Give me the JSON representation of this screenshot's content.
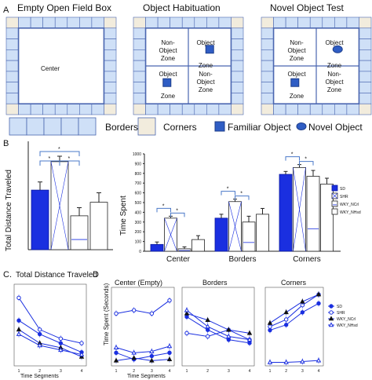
{
  "panelA": {
    "letter": "A",
    "boxes": [
      {
        "title": "Empty Open Field Box",
        "center_label": "Center"
      },
      {
        "title": "Object Habituation",
        "zones": [
          "Non-\nObject\nZone",
          "Object\nZone",
          "Object\nZone",
          "Non-\nObject\nZone"
        ]
      },
      {
        "title": "Novel Object Test",
        "zones": [
          "Non-\nObject\nZone",
          "Object\nZone",
          "Object\nZone",
          "Non-\nObject\nZone"
        ]
      }
    ],
    "legend": {
      "borders": "Borders",
      "corners": "Corners",
      "familiar": "Familiar Object",
      "novel": "Novel Object"
    },
    "colors": {
      "border_tile": "#cfe0f7",
      "corner_tile": "#f2ecdd",
      "tile_stroke": "#4a66b0",
      "object": "#2f5dc4"
    }
  },
  "chart_data": [
    {
      "panel": "B",
      "type": "bar",
      "ylabel": "Total Distance Traveled",
      "series": [
        {
          "name": "SD",
          "values": [
            22
          ],
          "err": [
            3
          ]
        },
        {
          "name": "SHR",
          "values": [
            32.5
          ],
          "err": [
            2
          ]
        },
        {
          "name": "WKY_NCrl",
          "values": [
            12.5
          ],
          "err": [
            3
          ]
        },
        {
          "name": "WKY_NHsd",
          "values": [
            17.5
          ],
          "err": [
            3.5
          ]
        }
      ],
      "significance": [
        "*",
        "*",
        "*"
      ]
    },
    {
      "panel": "B",
      "type": "bar",
      "ylabel": "Time Spent",
      "yticks": [
        "0",
        "100",
        "200",
        "300",
        "400",
        "500",
        "600",
        "700",
        "800",
        "900",
        "1000"
      ],
      "ylim": [
        0,
        1000
      ],
      "categories": [
        "Center",
        "Borders",
        "Corners"
      ],
      "series": [
        {
          "name": "SD",
          "values": [
            70,
            340,
            790
          ],
          "err": [
            25,
            40,
            30
          ]
        },
        {
          "name": "SHR",
          "values": [
            340,
            510,
            860
          ],
          "err": [
            20,
            25,
            30
          ]
        },
        {
          "name": "WKY_NCrl",
          "values": [
            25,
            300,
            770
          ],
          "err": [
            20,
            60,
            60
          ]
        },
        {
          "name": "WKY_NHsd",
          "values": [
            120,
            380,
            690
          ],
          "err": [
            40,
            60,
            60
          ]
        }
      ],
      "significance": [
        "*",
        "*",
        "*",
        "*",
        "*",
        "*"
      ]
    },
    {
      "panel": "C",
      "type": "line",
      "title": "Total Distance Traveled",
      "xlabel": "Time Segments",
      "x": [
        1,
        2,
        3,
        4
      ],
      "series": [
        {
          "name": "SD",
          "values": [
            10,
            7,
            5,
            3
          ]
        },
        {
          "name": "SHR",
          "values": [
            15,
            8,
            6,
            5
          ]
        },
        {
          "name": "WKY_NCrl",
          "values": [
            8,
            5,
            4,
            2
          ]
        },
        {
          "name": "WKY_NHsd",
          "values": [
            7,
            4.5,
            3.5,
            2.5
          ]
        }
      ]
    },
    {
      "panel": "D",
      "type": "line",
      "subplots": [
        {
          "title": "Center (Empty)",
          "x": [
            1,
            2,
            3,
            4
          ],
          "series": [
            {
              "name": "SD",
              "values": [
                20,
                10,
                15,
                20
              ]
            },
            {
              "name": "SHR",
              "values": [
                80,
                85,
                80,
                100
              ]
            },
            {
              "name": "WKY_NCrl",
              "values": [
                8,
                12,
                8,
                10
              ]
            },
            {
              "name": "WKY_NHsd",
              "values": [
                28,
                20,
                22,
                30
              ]
            }
          ]
        },
        {
          "title": "Borders",
          "x": [
            1,
            2,
            3,
            4
          ],
          "series": [
            {
              "name": "SD",
              "values": [
                75,
                55,
                40,
                35
              ]
            },
            {
              "name": "SHR",
              "values": [
                50,
                45,
                55,
                40
              ]
            },
            {
              "name": "WKY_NCrl",
              "values": [
                80,
                70,
                55,
                50
              ]
            },
            {
              "name": "WKY_NHsd",
              "values": [
                85,
                60,
                45,
                40
              ]
            }
          ]
        },
        {
          "title": "Corners",
          "x": [
            1,
            2,
            3,
            4
          ],
          "series": [
            {
              "name": "SD",
              "values": [
                100,
                115,
                150,
                175
              ]
            },
            {
              "name": "SHR",
              "values": [
                110,
                130,
                170,
                200
              ]
            },
            {
              "name": "WKY_NCrl",
              "values": [
                120,
                150,
                180,
                200
              ]
            },
            {
              "name": "WKY_NHsd",
              "values": [
                10,
                10,
                12,
                15
              ]
            }
          ]
        }
      ],
      "ylabel": "Time Spent (Seconds)",
      "xlabel": "Time Segments",
      "legend": [
        "SD",
        "SHR",
        "WKY_NCrl",
        "WKY_NHsd"
      ]
    }
  ],
  "labels": {
    "B": "B",
    "C": "C.",
    "D": "D",
    "xtick": [
      "1",
      "2",
      "3",
      "4"
    ]
  }
}
